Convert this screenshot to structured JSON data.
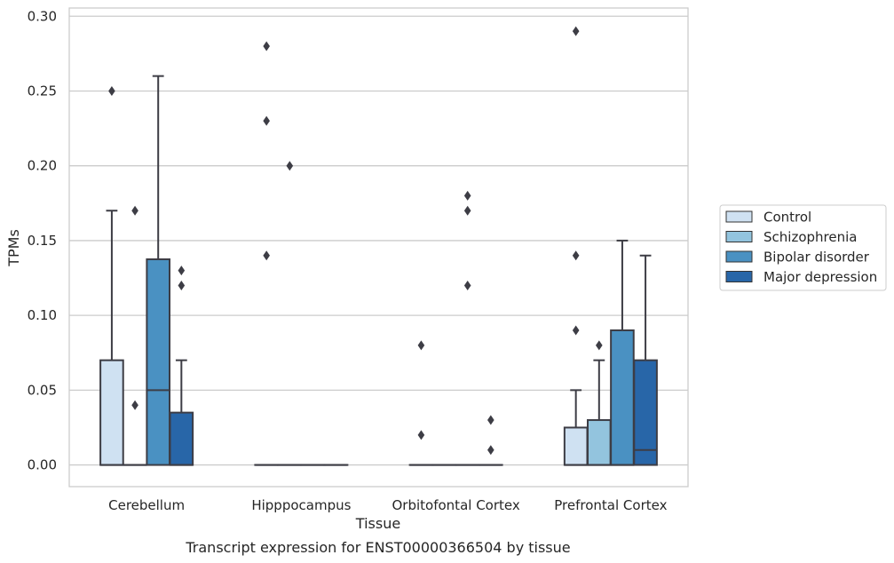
{
  "chart_data": {
    "type": "box",
    "title": "Transcript expression for ENST00000366504 by tissue",
    "xlabel": "Tissue",
    "ylabel": "TPMs",
    "ylim": [
      -0.0145,
      0.3055
    ],
    "yticks": [
      0.0,
      0.05,
      0.1,
      0.15,
      0.2,
      0.25,
      0.3
    ],
    "ytick_labels": [
      "0.00",
      "0.05",
      "0.10",
      "0.15",
      "0.20",
      "0.25",
      "0.30"
    ],
    "grid": "horizontal",
    "legend_position": "right",
    "categories": [
      "Cerebellum",
      "Hipppocampus",
      "Orbitofontal Cortex",
      "Prefrontal Cortex"
    ],
    "series": [
      {
        "name": "Control",
        "color": "#cfe1f2",
        "boxes": [
          {
            "whislo": 0,
            "q1": 0,
            "med": 0,
            "q3": 0.07,
            "whishi": 0.17,
            "fliers": [
              0.25
            ]
          },
          {
            "whislo": 0,
            "q1": 0,
            "med": 0,
            "q3": 0,
            "whishi": 0,
            "fliers": [
              0.14,
              0.23,
              0.28
            ]
          },
          {
            "whislo": 0,
            "q1": 0,
            "med": 0,
            "q3": 0,
            "whishi": 0,
            "fliers": [
              0.02,
              0.08
            ]
          },
          {
            "whislo": 0,
            "q1": 0,
            "med": 0,
            "q3": 0.025,
            "whishi": 0.05,
            "fliers": [
              0.09,
              0.14,
              0.29
            ]
          }
        ]
      },
      {
        "name": "Schizophrenia",
        "color": "#93c4de",
        "boxes": [
          {
            "whislo": 0,
            "q1": 0,
            "med": 0,
            "q3": 0,
            "whishi": 0,
            "fliers": [
              0.04,
              0.17
            ]
          },
          {
            "whislo": 0,
            "q1": 0,
            "med": 0,
            "q3": 0,
            "whishi": 0,
            "fliers": [
              0.2
            ]
          },
          {
            "whislo": 0,
            "q1": 0,
            "med": 0,
            "q3": 0,
            "whishi": 0,
            "fliers": []
          },
          {
            "whislo": 0,
            "q1": 0,
            "med": 0,
            "q3": 0.03,
            "whishi": 0.07,
            "fliers": [
              0.08
            ]
          }
        ]
      },
      {
        "name": "Bipolar disorder",
        "color": "#4a91c2",
        "boxes": [
          {
            "whislo": 0,
            "q1": 0,
            "med": 0.05,
            "q3": 0.1375,
            "whishi": 0.26,
            "fliers": []
          },
          {
            "whislo": 0,
            "q1": 0,
            "med": 0,
            "q3": 0,
            "whishi": 0,
            "fliers": []
          },
          {
            "whislo": 0,
            "q1": 0,
            "med": 0,
            "q3": 0,
            "whishi": 0,
            "fliers": [
              0.12,
              0.17,
              0.18
            ]
          },
          {
            "whislo": 0,
            "q1": 0,
            "med": 0,
            "q3": 0.09,
            "whishi": 0.15,
            "fliers": []
          }
        ]
      },
      {
        "name": "Major depression",
        "color": "#2866a8",
        "boxes": [
          {
            "whislo": 0,
            "q1": 0,
            "med": 0,
            "q3": 0.035,
            "whishi": 0.07,
            "fliers": [
              0.12,
              0.13
            ]
          },
          {
            "whislo": 0,
            "q1": 0,
            "med": 0,
            "q3": 0,
            "whishi": 0,
            "fliers": []
          },
          {
            "whislo": 0,
            "q1": 0,
            "med": 0,
            "q3": 0,
            "whishi": 0,
            "fliers": [
              0.01,
              0.03
            ]
          },
          {
            "whislo": 0,
            "q1": 0,
            "med": 0.01,
            "q3": 0.07,
            "whishi": 0.14,
            "fliers": []
          }
        ]
      }
    ]
  }
}
